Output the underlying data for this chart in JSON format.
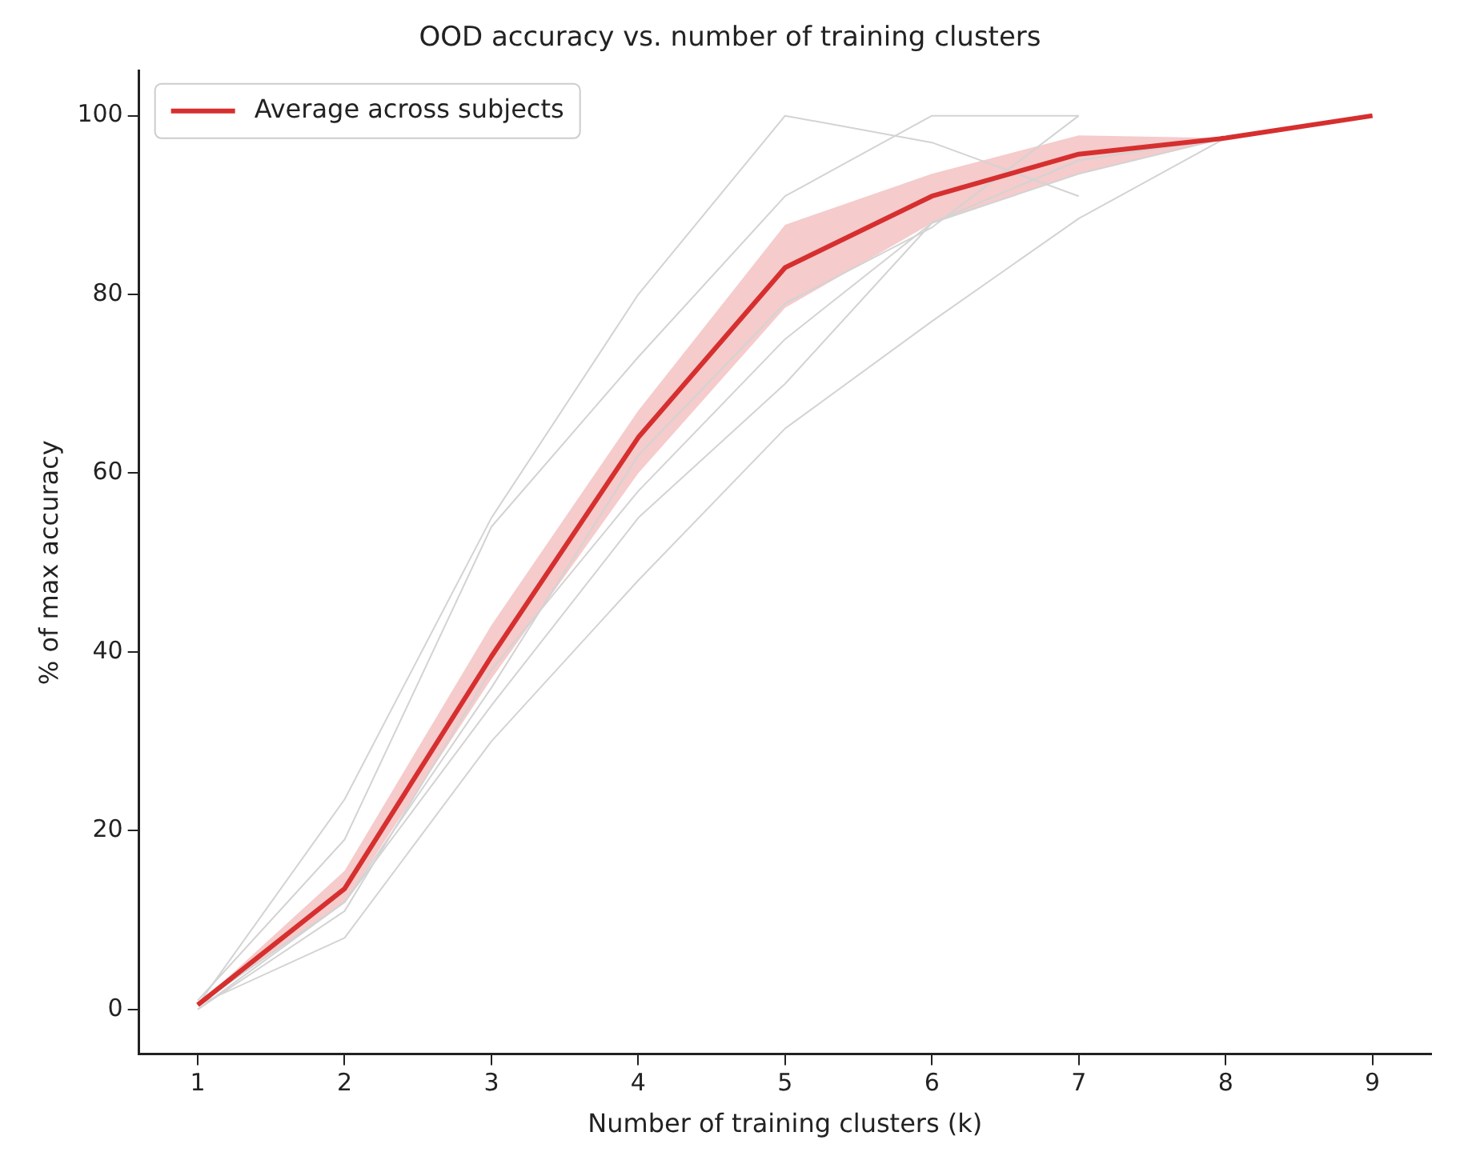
{
  "chart_data": {
    "type": "line",
    "title": "OOD accuracy vs. number of training clusters",
    "xlabel": "Number of training clusters (k)",
    "ylabel": "% of max accuracy",
    "x": [
      1,
      2,
      3,
      4,
      5,
      6,
      7,
      8,
      9
    ],
    "xlim": [
      0.6,
      9.4
    ],
    "xticks": [
      1,
      2,
      3,
      4,
      5,
      6,
      7,
      8,
      9
    ],
    "ylim": [
      -5,
      105
    ],
    "yticks": [
      0,
      20,
      40,
      60,
      80,
      100
    ],
    "grid": false,
    "legend": "top left",
    "marker": "none",
    "line_style": "solid",
    "series": [
      {
        "color": "#d3d3d3",
        "x": [
          1,
          2,
          3,
          4,
          5,
          6,
          7
        ],
        "values": [
          0.5,
          23.5,
          55,
          80,
          100,
          97,
          91
        ]
      },
      {
        "color": "#d3d3d3",
        "x": [
          1,
          2,
          3,
          4,
          5,
          6,
          7
        ],
        "values": [
          1,
          19,
          54,
          73,
          91,
          100,
          100
        ]
      },
      {
        "color": "#d3d3d3",
        "x": [
          1,
          2,
          3,
          4,
          5,
          6,
          7
        ],
        "values": [
          0.5,
          12,
          36,
          62,
          79,
          87.5,
          100
        ]
      },
      {
        "color": "#d3d3d3",
        "x": [
          1,
          2,
          3,
          4,
          5,
          6,
          7,
          8
        ],
        "values": [
          0.5,
          8,
          30,
          48,
          65,
          77,
          88.5,
          97.5
        ]
      },
      {
        "color": "#d3d3d3",
        "values": [
          0,
          11,
          38,
          58,
          75,
          88,
          93.5,
          97.5,
          100
        ]
      },
      {
        "color": "#d3d3d3",
        "x": [
          1,
          2,
          3,
          4,
          5,
          6,
          7,
          8
        ],
        "values": [
          0,
          12,
          34,
          55,
          70,
          88,
          95,
          97.5
        ]
      },
      {
        "name": "Average across subjects",
        "color": "#d62f2f",
        "values": [
          0.5,
          13.5,
          39.5,
          64,
          83,
          91,
          95.7,
          97.5,
          100
        ],
        "lower": [
          0.5,
          12,
          37,
          60,
          78.5,
          88,
          93.5,
          97.5,
          100
        ],
        "upper": [
          0.5,
          15.5,
          43,
          67,
          87.8,
          93.5,
          97.8,
          97.5,
          100
        ]
      }
    ]
  }
}
